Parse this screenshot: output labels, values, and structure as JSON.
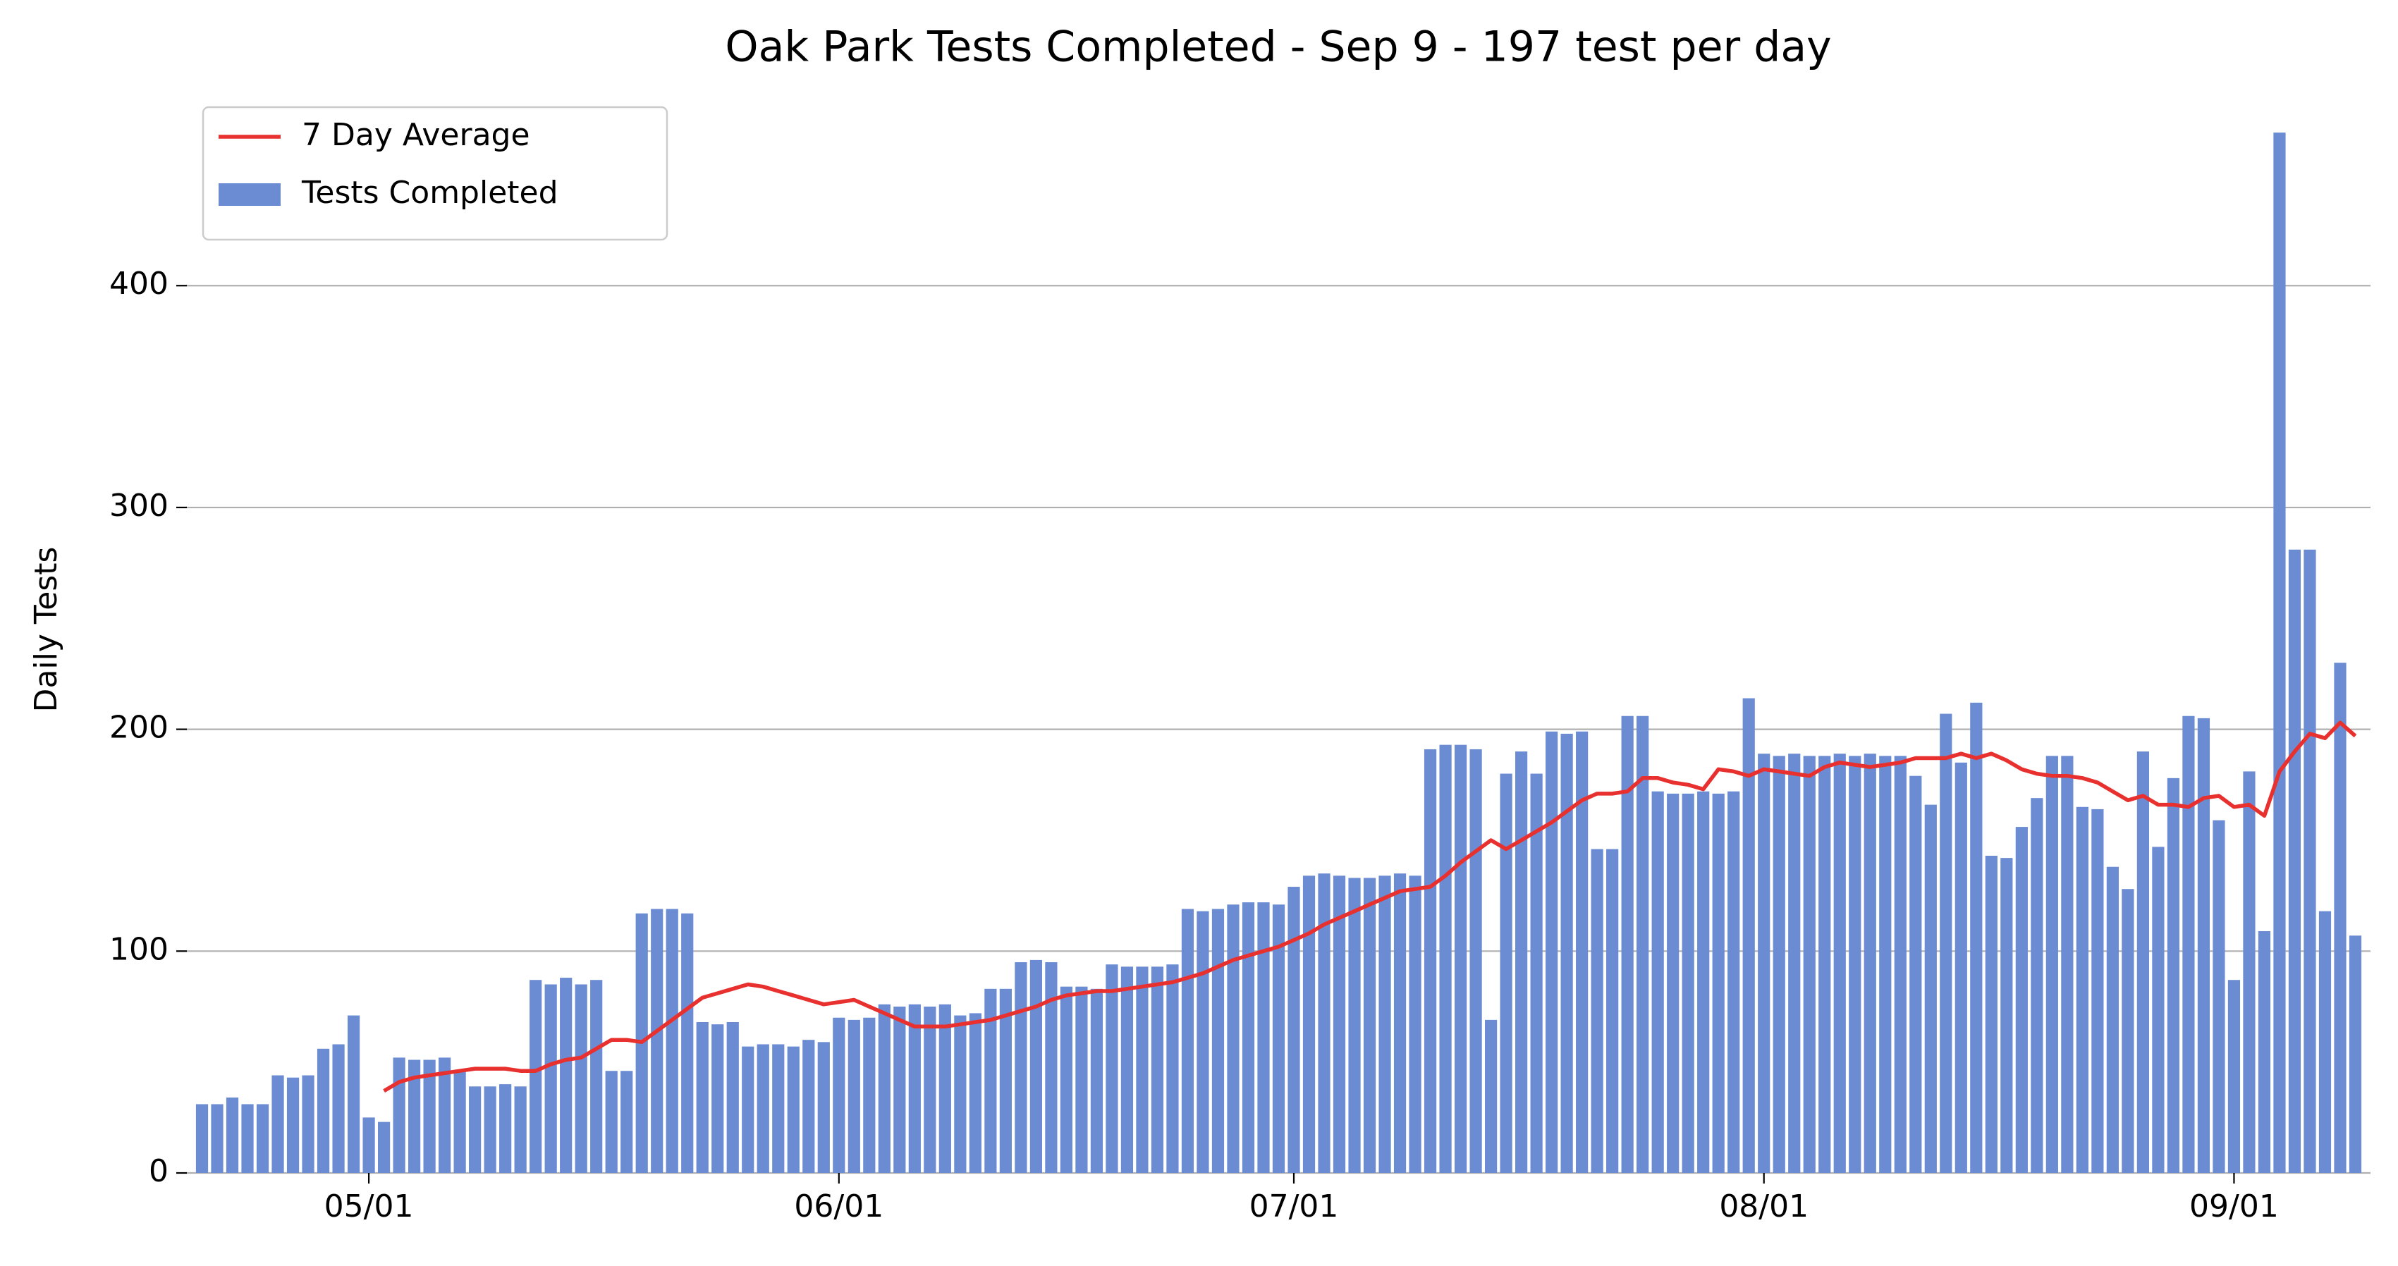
{
  "chart_data": {
    "type": "bar",
    "title": "Oak Park Tests Completed - Sep 9 - 197 test per day",
    "y_label": "Daily Tests",
    "legend": "upper left",
    "grid": true,
    "x": [
      "04-20",
      "04-21",
      "04-22",
      "04-23",
      "04-24",
      "04-25",
      "04-26",
      "04-27",
      "04-28",
      "04-29",
      "04-30",
      "05-01",
      "05-02",
      "05-03",
      "05-04",
      "05-05",
      "05-06",
      "05-07",
      "05-08",
      "05-09",
      "05-10",
      "05-11",
      "05-12",
      "05-13",
      "05-14",
      "05-15",
      "05-16",
      "05-17",
      "05-18",
      "05-19",
      "05-20",
      "05-21",
      "05-22",
      "05-23",
      "05-24",
      "05-25",
      "05-26",
      "05-27",
      "05-28",
      "05-29",
      "05-30",
      "05-31",
      "06-01",
      "06-02",
      "06-03",
      "06-04",
      "06-05",
      "06-06",
      "06-07",
      "06-08",
      "06-09",
      "06-10",
      "06-11",
      "06-12",
      "06-13",
      "06-14",
      "06-15",
      "06-16",
      "06-17",
      "06-18",
      "06-19",
      "06-20",
      "06-21",
      "06-22",
      "06-23",
      "06-24",
      "06-25",
      "06-26",
      "06-27",
      "06-28",
      "06-29",
      "06-30",
      "07-01",
      "07-02",
      "07-03",
      "07-04",
      "07-05",
      "07-06",
      "07-07",
      "07-08",
      "07-09",
      "07-10",
      "07-11",
      "07-12",
      "07-13",
      "07-14",
      "07-15",
      "07-16",
      "07-17",
      "07-18",
      "07-19",
      "07-20",
      "07-21",
      "07-22",
      "07-23",
      "07-24",
      "07-25",
      "07-26",
      "07-27",
      "07-28",
      "07-29",
      "07-30",
      "07-31",
      "08-01",
      "08-02",
      "08-03",
      "08-04",
      "08-05",
      "08-06",
      "08-07",
      "08-08",
      "08-09",
      "08-10",
      "08-11",
      "08-12",
      "08-13",
      "08-14",
      "08-15",
      "08-16",
      "08-17",
      "08-18",
      "08-19",
      "08-20",
      "08-21",
      "08-22",
      "08-23",
      "08-24",
      "08-25",
      "08-26",
      "08-27",
      "08-28",
      "08-29",
      "08-30",
      "08-31",
      "09-01",
      "09-02",
      "09-03",
      "09-04",
      "09-05",
      "09-06",
      "09-07",
      "09-08",
      "09-09"
    ],
    "xlim": [
      "04-19",
      "09-10"
    ],
    "xticks": [
      {
        "value": "05-01",
        "label": "05/01"
      },
      {
        "value": "06-01",
        "label": "06/01"
      },
      {
        "value": "07-01",
        "label": "07/01"
      },
      {
        "value": "08-01",
        "label": "08/01"
      },
      {
        "value": "09-01",
        "label": "09/01"
      }
    ],
    "ylim": [
      0,
      490
    ],
    "yticks": [
      0,
      100,
      200,
      300,
      400
    ],
    "series": [
      {
        "name": "7 Day Average",
        "type": "line",
        "color": "#e8312f",
        "values": [
          null,
          null,
          null,
          null,
          null,
          null,
          null,
          null,
          null,
          null,
          null,
          null,
          37,
          41,
          43,
          44,
          45,
          46,
          47,
          47,
          47,
          46,
          46,
          49,
          51,
          52,
          56,
          60,
          60,
          59,
          64,
          69,
          74,
          79,
          81,
          83,
          85,
          84,
          82,
          80,
          78,
          76,
          77,
          78,
          75,
          72,
          69,
          66,
          66,
          66,
          67,
          68,
          69,
          71,
          73,
          75,
          78,
          80,
          81,
          82,
          82,
          83,
          84,
          85,
          86,
          88,
          90,
          93,
          96,
          98,
          100,
          102,
          105,
          108,
          112,
          115,
          118,
          121,
          124,
          127,
          128,
          129,
          134,
          140,
          145,
          150,
          146,
          150,
          154,
          158,
          163,
          168,
          171,
          171,
          172,
          178,
          178,
          176,
          175,
          173,
          182,
          181,
          179,
          182,
          181,
          180,
          179,
          183,
          185,
          184,
          183,
          184,
          185,
          187,
          187,
          187,
          189,
          187,
          189,
          186,
          182,
          180,
          179,
          179,
          178,
          176,
          172,
          168,
          170,
          166,
          166,
          165,
          169,
          170,
          165,
          166,
          161,
          181,
          190,
          198,
          196,
          203,
          197
        ]
      },
      {
        "name": "Tests Completed",
        "type": "bar",
        "color": "#6b8cd3",
        "values": [
          31,
          31,
          34,
          31,
          31,
          44,
          43,
          44,
          56,
          58,
          71,
          25,
          23,
          52,
          51,
          51,
          52,
          46,
          39,
          39,
          40,
          39,
          87,
          85,
          88,
          85,
          87,
          46,
          46,
          117,
          119,
          119,
          117,
          68,
          67,
          68,
          57,
          58,
          58,
          57,
          60,
          59,
          70,
          69,
          70,
          76,
          75,
          76,
          75,
          76,
          71,
          72,
          83,
          83,
          95,
          96,
          95,
          84,
          84,
          83,
          94,
          93,
          93,
          93,
          94,
          119,
          118,
          119,
          121,
          122,
          122,
          121,
          129,
          134,
          135,
          134,
          133,
          133,
          134,
          135,
          134,
          191,
          193,
          193,
          191,
          69,
          180,
          190,
          180,
          199,
          198,
          199,
          146,
          146,
          206,
          206,
          172,
          171,
          171,
          172,
          171,
          172,
          214,
          189,
          188,
          189,
          188,
          188,
          189,
          188,
          189,
          188,
          188,
          179,
          166,
          207,
          185,
          212,
          143,
          142,
          156,
          169,
          188,
          188,
          165,
          164,
          138,
          128,
          190,
          147,
          178,
          206,
          205,
          159,
          87,
          181,
          109,
          469,
          281,
          281,
          118,
          230,
          107
        ]
      }
    ]
  }
}
